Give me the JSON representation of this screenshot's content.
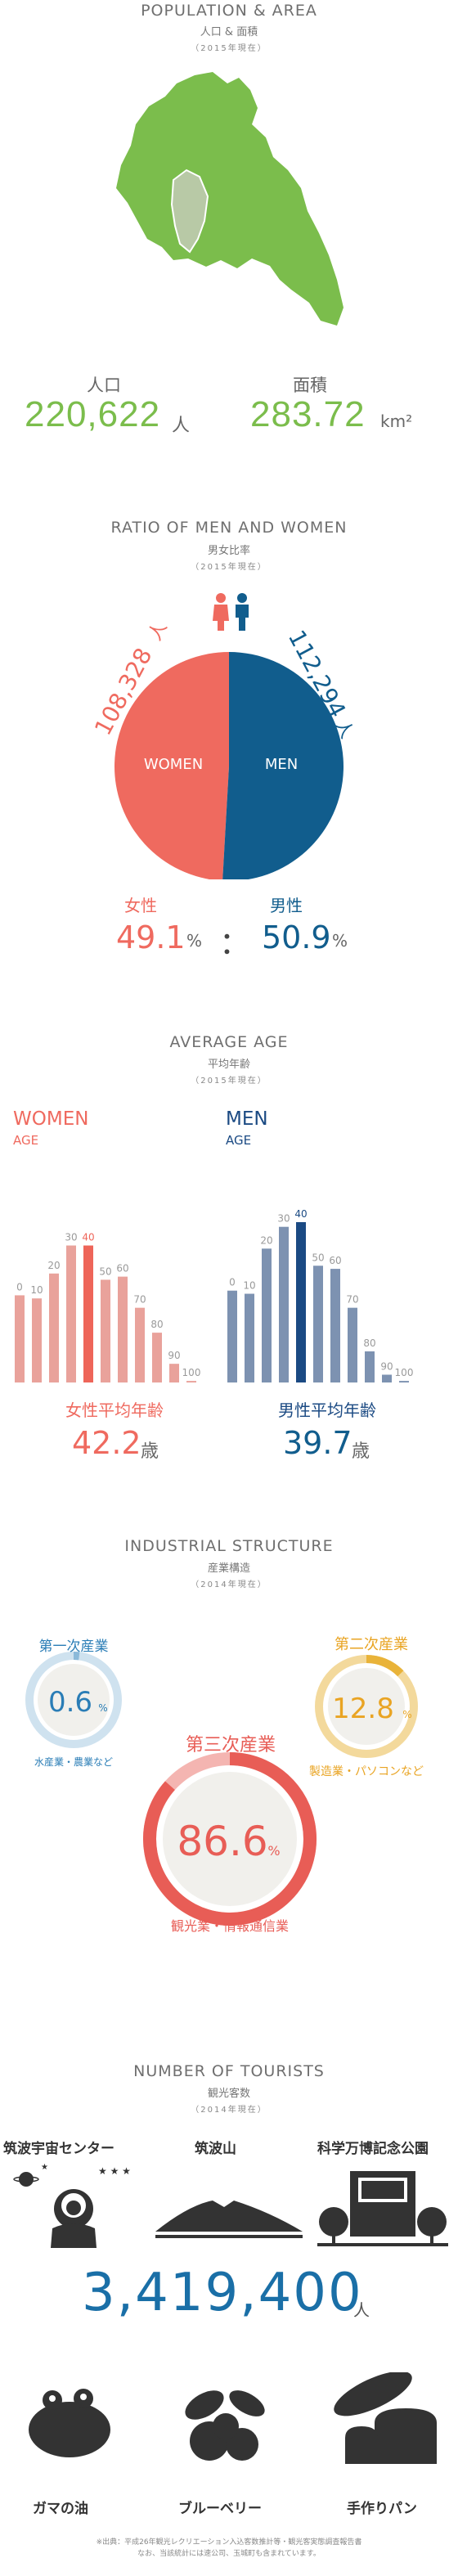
{
  "population": {
    "title": "POPULATION & AREA",
    "subtitle": "人口 & 面積",
    "year": "（2015年現在）",
    "pop_label": "人口",
    "pop_value": "220,622",
    "pop_unit": "人",
    "area_label": "面積",
    "area_value": "283.72",
    "area_unit": "km²",
    "colors": {
      "green": "#7bbd4c",
      "highlight": "#b8c9a6"
    }
  },
  "ratio": {
    "title": "RATIO OF MEN AND WOMEN",
    "subtitle": "男女比率",
    "year": "（2015年現在）",
    "women_count": "108,328",
    "men_count": "112,294",
    "count_unit": "人",
    "women_label": "WOMEN",
    "men_label": "MEN",
    "women_jp": "女性",
    "men_jp": "男性",
    "women_pct": "49.1",
    "men_pct": "50.9",
    "pct_unit": "%",
    "separator": "：",
    "colors": {
      "women": "#ef6a5f",
      "men": "#115d8d"
    }
  },
  "age": {
    "title": "AVERAGE AGE",
    "subtitle": "平均年齢",
    "year": "（2015年現在）",
    "women_title": "WOMEN",
    "women_sub": "AGE",
    "men_title": "MEN",
    "men_sub": "AGE",
    "women_avg_label": "女性平均年齢",
    "women_avg": "42.2",
    "men_avg_label": "男性平均年齢",
    "men_avg": "39.7",
    "avg_unit": "歳",
    "colors": {
      "women": "#e9a29b",
      "women_peak": "#ee6559",
      "men": "#7d92b1",
      "men_peak": "#1b4a83"
    }
  },
  "chart_data": [
    {
      "type": "bar",
      "title": "WOMEN",
      "categories": [
        "0",
        "10",
        "20",
        "30",
        "40",
        "50",
        "60",
        "70",
        "80",
        "90",
        "100"
      ],
      "values": [
        5.6,
        5.4,
        7.0,
        8.8,
        8.8,
        6.6,
        6.8,
        4.8,
        3.2,
        1.2,
        0.1
      ],
      "highlight": "40"
    },
    {
      "type": "bar",
      "title": "MEN",
      "categories": [
        "0",
        "10",
        "20",
        "30",
        "40",
        "50",
        "60",
        "70",
        "80",
        "90",
        "100"
      ],
      "values": [
        5.9,
        5.7,
        8.6,
        10.0,
        10.3,
        7.5,
        7.3,
        4.8,
        2.0,
        0.5,
        0.1
      ],
      "highlight": "40"
    }
  ],
  "industry": {
    "title": "INDUSTRIAL STRUCTURE",
    "subtitle": "産業構造",
    "year": "（2014年現在）",
    "primary": {
      "title": "第一次産業",
      "value": "0.6",
      "unit": "%",
      "desc": "水産業・農業など",
      "fraction": 0.006,
      "color": "#8bb9d9"
    },
    "secondary": {
      "title": "第二次産業",
      "value": "12.8",
      "unit": "%",
      "desc": "製造業・パソコンなど",
      "fraction": 0.128,
      "color": "#e9b339"
    },
    "tertiary": {
      "title": "第三次産業",
      "value": "86.6",
      "unit": "%",
      "desc": "観光業・情報通信業",
      "fraction": 0.866,
      "color": "#e85d56"
    }
  },
  "tourists": {
    "title": "NUMBER OF TOURISTS",
    "subtitle": "観光客数",
    "year": "（2014年現在）",
    "spot1": "筑波宇宙センター",
    "spot2": "筑波山",
    "spot3": "科学万博記念公園",
    "total": "3,419,400",
    "unit": "人",
    "item1": "ガマの油",
    "item2": "ブルーベリー",
    "item3": "手作りパン",
    "source_line1": "※出典：平成26年観光レクリエーション入込客数推計等・観光客実態調査報告書",
    "source_line2": "なお、当該統計には速公司、玉城町も含まれています。",
    "colors": {
      "blue": "#1a6fa7"
    }
  }
}
